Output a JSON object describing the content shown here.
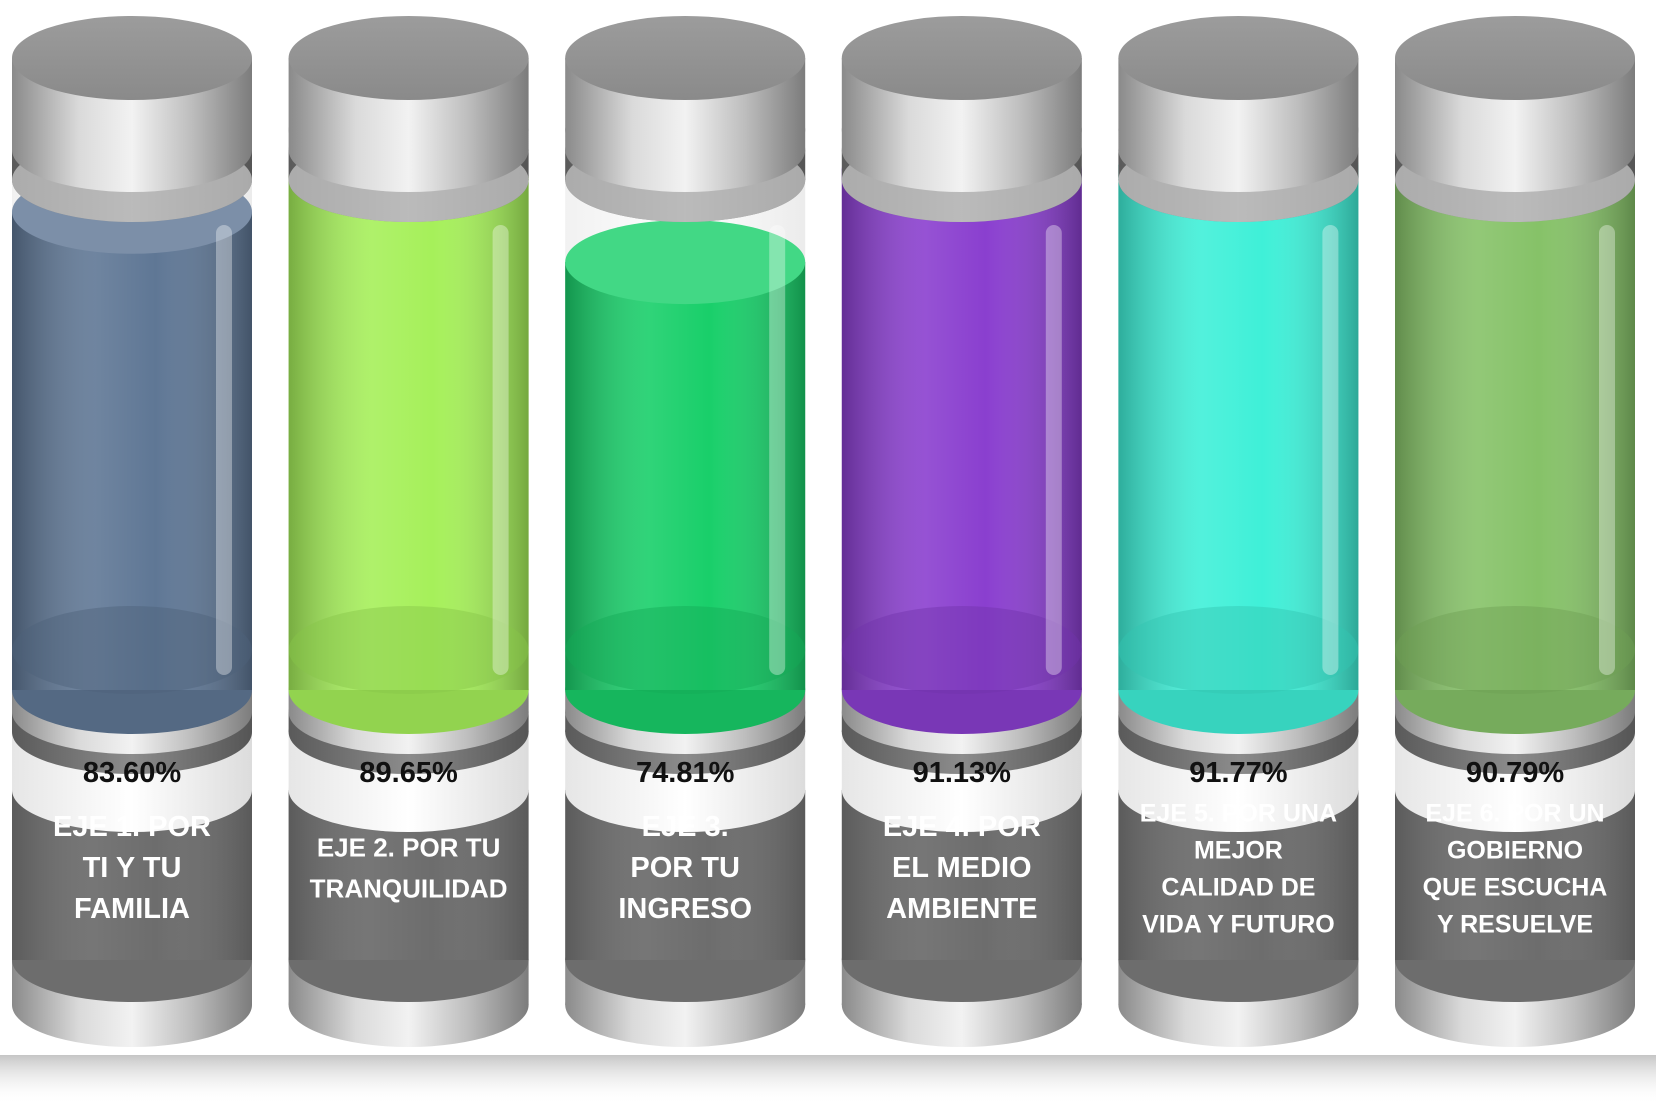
{
  "chart_data": {
    "type": "bar",
    "style": "3d-cylinder-tubes",
    "ylim": [
      0,
      100
    ],
    "categories": [
      "EJE 1. POR TI Y TU FAMILIA",
      "EJE 2. POR TU TRANQUILIDAD",
      "EJE 3. POR TU INGRESO",
      "EJE 4. POR EL MEDIO AMBIENTE",
      "EJE 5. POR UNA MEJOR CALIDAD DE VIDA Y FUTURO",
      "EJE 6. POR UN GOBIERNO QUE ESCUCHA Y RESUELVE"
    ],
    "values": [
      83.6,
      89.65,
      74.81,
      91.13,
      91.77,
      90.79
    ],
    "value_labels": [
      "83.60%",
      "89.65%",
      "74.81%",
      "91.13%",
      "91.77%",
      "90.79%"
    ],
    "label_lines": [
      [
        "EJE 1. POR",
        "TI Y TU",
        "FAMILIA"
      ],
      [
        "EJE 2. POR TU",
        "TRANQUILIDAD"
      ],
      [
        "EJE 3.",
        "POR TU",
        "INGRESO"
      ],
      [
        "EJE 4. POR",
        "EL MEDIO",
        "AMBIENTE"
      ],
      [
        "EJE 5. POR UNA",
        "MEJOR",
        "CALIDAD DE",
        "VIDA Y FUTURO"
      ],
      [
        "EJE 6. POR UN",
        "GOBIERNO",
        "QUE ESCUCHA",
        "Y RESUELVE"
      ]
    ],
    "colors": [
      "#5f7795",
      "#a6f05a",
      "#19cf6a",
      "#8a3fcf",
      "#3ff0d8",
      "#86c268"
    ],
    "label_band_color": "#6f6f6f",
    "value_band_color": "#ececec"
  }
}
